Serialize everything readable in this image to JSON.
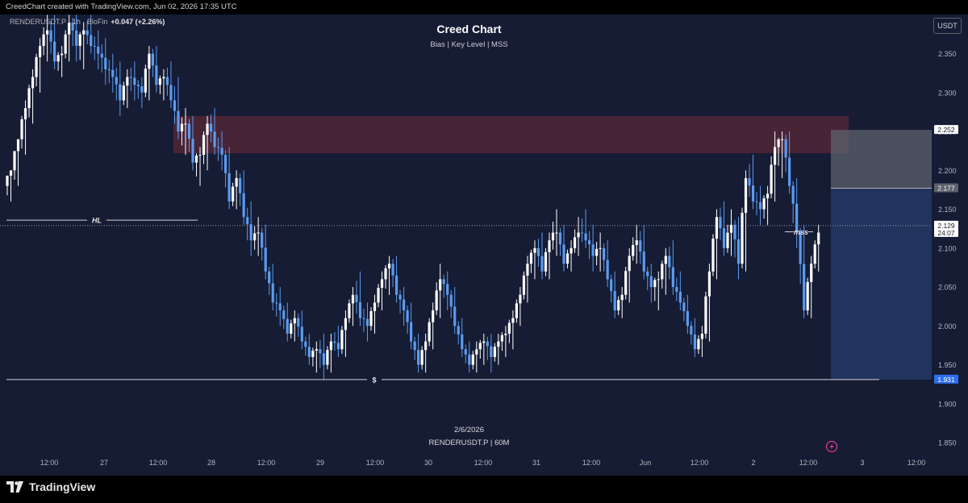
{
  "header": {
    "created_by": "CreedChart created with TradingView.com, Jun 02, 2026 17:35 UTC"
  },
  "legend": {
    "symbol": "RENDERUSDT.P · 1h · BloFin",
    "change": "+0.047 (+2.26%)"
  },
  "title": "Creed Chart",
  "subtitle": "Bias  |  Key Level  |  MSS",
  "currency_button": "USDT",
  "watermark": {
    "date": "2/6/2026",
    "symbol": "RENDERUSDT.P | 60M"
  },
  "footer": {
    "brand": "TradingView"
  },
  "colors": {
    "background": "#161c34",
    "bull": "#ffffff",
    "bear": "#5b9bf0",
    "supply_zone": "#4b2538",
    "short_stop": "#5e626d",
    "short_target": "#223660"
  },
  "icons": [
    "tradingview-logo-icon",
    "lightning-icon"
  ],
  "chart_data": {
    "type": "candlestick",
    "symbol": "RENDERUSDT.P",
    "interval": "60M",
    "ylim": [
      1.82,
      2.39
    ],
    "y_ticks": [
      "2.350",
      "2.300",
      "2.250",
      "2.200",
      "2.150",
      "2.100",
      "2.050",
      "2.000",
      "1.950",
      "1.900",
      "1.850"
    ],
    "x_ticks": [
      "12:00",
      "27",
      "12:00",
      "28",
      "12:00",
      "29",
      "12:00",
      "30",
      "12:00",
      "31",
      "12:00",
      "Jun",
      "12:00",
      "2",
      "12:00",
      "3",
      "12:00"
    ],
    "price_labels": [
      {
        "text": "2.252",
        "value": 2.252,
        "style": "white"
      },
      {
        "text": "2.177",
        "value": 2.177,
        "style": "grey"
      },
      {
        "text": "2.129",
        "value": 2.129,
        "style": "white",
        "sub": "24:07"
      },
      {
        "text": "1.931",
        "value": 1.931,
        "style": "blue"
      }
    ],
    "annotations": [
      {
        "text": "HL",
        "type": "horizontal-line",
        "value": 2.136
      },
      {
        "text": "$",
        "type": "horizontal-line",
        "value": 1.931
      },
      {
        "text": "mss",
        "type": "horizontal-line",
        "value": 2.121
      }
    ],
    "zones": [
      {
        "name": "supply",
        "from": 2.222,
        "to": 2.27
      },
      {
        "name": "stop",
        "from": 2.177,
        "to": 2.252
      },
      {
        "name": "target",
        "from": 1.931,
        "to": 2.177
      }
    ],
    "current_price": 2.129,
    "anchors": [
      [
        2.18,
        2.2,
        2.16,
        2.2
      ],
      [
        2.2,
        2.24,
        2.18,
        2.24
      ],
      [
        2.24,
        2.29,
        2.22,
        2.28
      ],
      [
        2.28,
        2.33,
        2.26,
        2.32
      ],
      [
        2.32,
        2.37,
        2.3,
        2.36
      ],
      [
        2.36,
        2.4,
        2.34,
        2.38
      ],
      [
        2.38,
        2.4,
        2.33,
        2.34
      ],
      [
        2.34,
        2.36,
        2.32,
        2.35
      ],
      [
        2.35,
        2.4,
        2.34,
        2.39
      ],
      [
        2.39,
        2.4,
        2.34,
        2.36
      ],
      [
        2.36,
        2.39,
        2.33,
        2.38
      ],
      [
        2.38,
        2.4,
        2.35,
        2.36
      ],
      [
        2.36,
        2.38,
        2.33,
        2.35
      ],
      [
        2.35,
        2.37,
        2.31,
        2.33
      ],
      [
        2.33,
        2.35,
        2.3,
        2.32
      ],
      [
        2.32,
        2.34,
        2.27,
        2.29
      ],
      [
        2.29,
        2.33,
        2.28,
        2.32
      ],
      [
        2.32,
        2.34,
        2.29,
        2.31
      ],
      [
        2.31,
        2.32,
        2.28,
        2.3
      ],
      [
        2.3,
        2.36,
        2.29,
        2.35
      ],
      [
        2.35,
        2.36,
        2.3,
        2.31
      ],
      [
        2.31,
        2.33,
        2.29,
        2.32
      ],
      [
        2.32,
        2.34,
        2.28,
        2.29
      ],
      [
        2.29,
        2.32,
        2.24,
        2.25
      ],
      [
        2.25,
        2.28,
        2.22,
        2.26
      ],
      [
        2.26,
        2.27,
        2.2,
        2.21
      ],
      [
        2.21,
        2.23,
        2.18,
        2.22
      ],
      [
        2.22,
        2.27,
        2.2,
        2.26
      ],
      [
        2.26,
        2.28,
        2.22,
        2.23
      ],
      [
        2.23,
        2.25,
        2.2,
        2.22
      ],
      [
        2.22,
        2.23,
        2.15,
        2.16
      ],
      [
        2.16,
        2.2,
        2.15,
        2.19
      ],
      [
        2.19,
        2.2,
        2.13,
        2.14
      ],
      [
        2.14,
        2.16,
        2.09,
        2.11
      ],
      [
        2.11,
        2.14,
        2.09,
        2.12
      ],
      [
        2.12,
        2.13,
        2.06,
        2.07
      ],
      [
        2.07,
        2.08,
        2.02,
        2.03
      ],
      [
        2.03,
        2.05,
        2.0,
        2.02
      ],
      [
        2.02,
        2.03,
        1.98,
        1.99
      ],
      [
        1.99,
        2.02,
        1.98,
        2.01
      ],
      [
        2.01,
        2.02,
        1.97,
        1.98
      ],
      [
        1.98,
        1.99,
        1.95,
        1.96
      ],
      [
        1.96,
        1.98,
        1.94,
        1.97
      ],
      [
        1.97,
        1.99,
        1.93,
        1.95
      ],
      [
        1.95,
        1.99,
        1.94,
        1.98
      ],
      [
        1.98,
        2.0,
        1.96,
        1.97
      ],
      [
        1.97,
        2.02,
        1.96,
        2.01
      ],
      [
        2.01,
        2.05,
        2.0,
        2.04
      ],
      [
        2.04,
        2.07,
        2.0,
        2.01
      ],
      [
        2.01,
        2.03,
        1.98,
        2.0
      ],
      [
        2.0,
        2.04,
        1.99,
        2.03
      ],
      [
        2.03,
        2.07,
        2.02,
        2.06
      ],
      [
        2.06,
        2.09,
        2.04,
        2.08
      ],
      [
        2.08,
        2.09,
        2.03,
        2.04
      ],
      [
        2.04,
        2.05,
        2.0,
        2.02
      ],
      [
        2.02,
        2.03,
        1.97,
        1.98
      ],
      [
        1.98,
        1.99,
        1.94,
        1.95
      ],
      [
        1.95,
        1.99,
        1.94,
        1.98
      ],
      [
        1.98,
        2.03,
        1.97,
        2.02
      ],
      [
        2.02,
        2.08,
        2.01,
        2.06
      ],
      [
        2.06,
        2.07,
        2.02,
        2.04
      ],
      [
        2.04,
        2.05,
        1.99,
        2.0
      ],
      [
        2.0,
        2.01,
        1.96,
        1.97
      ],
      [
        1.97,
        1.98,
        1.94,
        1.95
      ],
      [
        1.95,
        1.98,
        1.94,
        1.97
      ],
      [
        1.97,
        1.99,
        1.95,
        1.98
      ],
      [
        1.98,
        1.99,
        1.94,
        1.96
      ],
      [
        1.96,
        1.99,
        1.95,
        1.98
      ],
      [
        1.98,
        2.0,
        1.96,
        1.99
      ],
      [
        1.99,
        2.02,
        1.97,
        2.01
      ],
      [
        2.01,
        2.05,
        2.0,
        2.04
      ],
      [
        2.04,
        2.09,
        2.03,
        2.08
      ],
      [
        2.08,
        2.11,
        2.06,
        2.1
      ],
      [
        2.1,
        2.12,
        2.06,
        2.07
      ],
      [
        2.07,
        2.12,
        2.06,
        2.11
      ],
      [
        2.11,
        2.15,
        2.09,
        2.12
      ],
      [
        2.12,
        2.13,
        2.07,
        2.08
      ],
      [
        2.08,
        2.11,
        2.07,
        2.1
      ],
      [
        2.1,
        2.14,
        2.09,
        2.12
      ],
      [
        2.12,
        2.15,
        2.1,
        2.11
      ],
      [
        2.11,
        2.13,
        2.07,
        2.09
      ],
      [
        2.09,
        2.12,
        2.07,
        2.1
      ],
      [
        2.1,
        2.11,
        2.05,
        2.06
      ],
      [
        2.06,
        2.07,
        2.01,
        2.02
      ],
      [
        2.02,
        2.05,
        2.01,
        2.04
      ],
      [
        2.04,
        2.1,
        2.03,
        2.09
      ],
      [
        2.09,
        2.13,
        2.08,
        2.11
      ],
      [
        2.11,
        2.13,
        2.06,
        2.07
      ],
      [
        2.07,
        2.08,
        2.03,
        2.05
      ],
      [
        2.05,
        2.07,
        2.02,
        2.06
      ],
      [
        2.06,
        2.1,
        2.04,
        2.09
      ],
      [
        2.09,
        2.11,
        2.04,
        2.05
      ],
      [
        2.05,
        2.07,
        2.02,
        2.03
      ],
      [
        2.03,
        2.04,
        1.99,
        2.0
      ],
      [
        2.0,
        2.01,
        1.96,
        1.97
      ],
      [
        1.97,
        2.0,
        1.96,
        1.99
      ],
      [
        1.99,
        2.08,
        1.98,
        2.07
      ],
      [
        2.07,
        2.15,
        2.06,
        2.14
      ],
      [
        2.14,
        2.16,
        2.09,
        2.1
      ],
      [
        2.1,
        2.15,
        2.09,
        2.13
      ],
      [
        2.13,
        2.14,
        2.06,
        2.08
      ],
      [
        2.08,
        2.2,
        2.07,
        2.19
      ],
      [
        2.19,
        2.22,
        2.15,
        2.16
      ],
      [
        2.16,
        2.18,
        2.13,
        2.15
      ],
      [
        2.15,
        2.18,
        2.13,
        2.17
      ],
      [
        2.17,
        2.25,
        2.16,
        2.23
      ],
      [
        2.23,
        2.25,
        2.19,
        2.24
      ],
      [
        2.24,
        2.25,
        2.17,
        2.18
      ],
      [
        2.18,
        2.19,
        2.1,
        2.12
      ],
      [
        2.12,
        2.13,
        2.01,
        2.02
      ],
      [
        2.02,
        2.09,
        2.01,
        2.08
      ],
      [
        2.08,
        2.13,
        2.07,
        2.12
      ]
    ]
  }
}
